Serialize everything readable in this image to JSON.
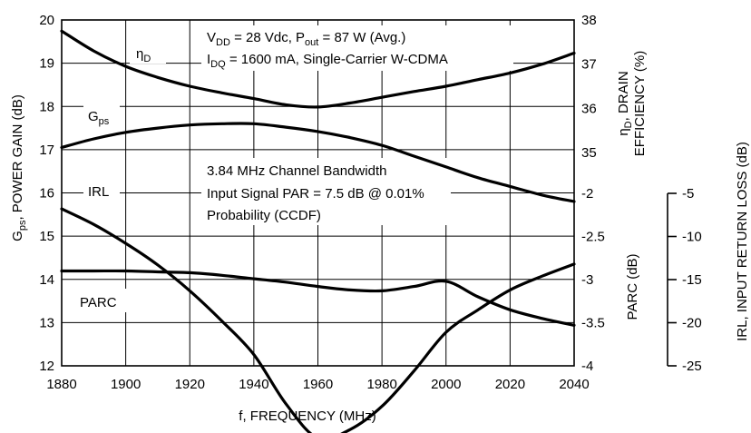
{
  "chart_data": {
    "type": "line",
    "title": "",
    "xlabel": "f, FREQUENCY (MHz)",
    "x_ticks": [
      "1880",
      "1900",
      "1920",
      "1940",
      "1960",
      "1980",
      "2000",
      "2020",
      "2040"
    ],
    "xlim": [
      1880,
      2040
    ],
    "y_left": {
      "label_main": "G",
      "label_sub": "ps",
      "label_rest": ", POWER GAIN (dB)",
      "ticks": [
        "12",
        "13",
        "14",
        "15",
        "16",
        "17",
        "18",
        "19",
        "20"
      ],
      "range": [
        12,
        20
      ]
    },
    "y_right_eff": {
      "label_line1_main": "η",
      "label_line1_sub": "D",
      "label_line1_rest": ", DRAIN",
      "label_line2": "EFFICIENCY (%)",
      "ticks": [
        "35",
        "36",
        "37",
        "38"
      ],
      "range": [
        35,
        38
      ]
    },
    "y_right_parc": {
      "label": "PARC (dB)",
      "ticks": [
        "-2",
        "-2.5",
        "-3",
        "-3.5",
        "-4"
      ],
      "range": [
        -4,
        -2
      ]
    },
    "y_right_irl": {
      "label": "IRL, INPUT RETURN LOSS (dB)",
      "ticks": [
        "-5",
        "-10",
        "-15",
        "-20",
        "-25"
      ],
      "range": [
        -25,
        -5
      ]
    },
    "annotations": {
      "conditions_line1": "V",
      "conditions_line1_sub": "DD",
      "conditions_line1_mid": " = 28 Vdc, P",
      "conditions_line1_sub2": "out",
      "conditions_line1_end": " = 87 W (Avg.)",
      "conditions_line2": "I",
      "conditions_line2_sub": "DQ",
      "conditions_line2_end": " = 1600 mA, Single-Carrier W-CDMA",
      "signal_line1": "3.84 MHz Channel Bandwidth",
      "signal_line2": "Input Signal PAR = 7.5 dB @ 0.01%",
      "signal_line3": "Probability (CCDF)"
    },
    "series": [
      {
        "name": "η",
        "name_sub": "D",
        "axis": "efficiency",
        "x": [
          1880,
          1890,
          1900,
          1910,
          1920,
          1930,
          1940,
          1950,
          1960,
          1970,
          1980,
          1990,
          2000,
          2010,
          2020,
          2030,
          2040
        ],
        "y": [
          37.75,
          37.3,
          36.95,
          36.7,
          36.5,
          36.35,
          36.22,
          36.08,
          36.03,
          36.12,
          36.25,
          36.38,
          36.5,
          36.65,
          36.8,
          37.0,
          37.25
        ]
      },
      {
        "name": "G",
        "name_sub": "ps",
        "axis": "gain",
        "x": [
          1880,
          1890,
          1900,
          1910,
          1920,
          1930,
          1940,
          1950,
          1960,
          1970,
          1980,
          1990,
          2000,
          2010,
          2020,
          2030,
          2040
        ],
        "y": [
          17.05,
          17.25,
          17.4,
          17.5,
          17.57,
          17.6,
          17.6,
          17.52,
          17.42,
          17.28,
          17.1,
          16.85,
          16.6,
          16.35,
          16.15,
          15.95,
          15.8
        ]
      },
      {
        "name": "IRL",
        "axis": "irl",
        "x": [
          1880,
          1890,
          1900,
          1910,
          1920,
          1930,
          1940,
          1950,
          1960,
          1970,
          1980,
          1990,
          2000,
          2010,
          2020,
          2030,
          2040
        ],
        "y": [
          -6.8,
          -8.6,
          -10.8,
          -13.3,
          -16.3,
          -19.8,
          -23.7,
          -29.4,
          -33.4,
          -32.4,
          -29.7,
          -25.6,
          -21.1,
          -18.5,
          -16.2,
          -14.6,
          -13.2
        ]
      },
      {
        "name": "PARC",
        "axis": "parc",
        "x": [
          1880,
          1890,
          1900,
          1910,
          1920,
          1930,
          1940,
          1950,
          1960,
          1970,
          1980,
          1990,
          2000,
          2010,
          2020,
          2030,
          2040
        ],
        "y": [
          -2.9,
          -2.9,
          -2.9,
          -2.91,
          -2.92,
          -2.95,
          -2.99,
          -3.03,
          -3.08,
          -3.12,
          -3.13,
          -3.08,
          -3.02,
          -3.2,
          -3.35,
          -3.45,
          -3.53
        ]
      }
    ],
    "curve_labels": {
      "eff": "η",
      "eff_sub": "D",
      "gps": "G",
      "gps_sub": "ps",
      "irl": "IRL",
      "parc": "PARC"
    }
  }
}
